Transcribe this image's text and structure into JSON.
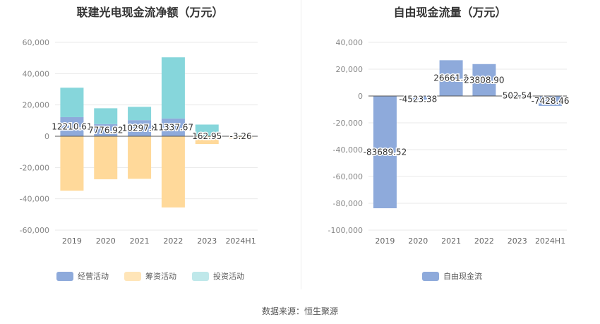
{
  "source": "数据来源：恒生聚源",
  "chart_data": [
    {
      "type": "bar",
      "stacked": true,
      "title": "联建光电现金流净额（万元）",
      "categories": [
        "2019",
        "2020",
        "2021",
        "2022",
        "2023",
        "2024H1"
      ],
      "ylim": [
        -60000,
        60000
      ],
      "yticks": [
        60000,
        40000,
        20000,
        0,
        -20000,
        -40000,
        -60000
      ],
      "ytick_labels": [
        "60,000",
        "40,000",
        "20,000",
        "0",
        "-20,000",
        "-40,000",
        "-60,000"
      ],
      "series": [
        {
          "name": "经营活动",
          "color": "#8eaadb",
          "values": [
            12210.61,
            7776.92,
            10297.8,
            11337.67,
            162.95,
            -3.26
          ]
        },
        {
          "name": "筹资活动",
          "color": "#ffd99a",
          "values": [
            -34800,
            -27500,
            -27200,
            -45500,
            -5000,
            -1500
          ]
        },
        {
          "name": "投资活动",
          "color": "#86d6db",
          "values": [
            18800,
            10100,
            8500,
            39100,
            7300,
            300
          ]
        }
      ],
      "data_labels": [
        "12210.61",
        "7776.92",
        "10297.8",
        "11337.67",
        "162.95",
        "-3.26"
      ],
      "legend": [
        "经营活动",
        "筹资活动",
        "投资活动"
      ]
    },
    {
      "type": "bar",
      "title": "自由现金流量（万元）",
      "categories": [
        "2019",
        "2020",
        "2021",
        "2022",
        "2023",
        "2024H1"
      ],
      "ylim": [
        -100000,
        40000
      ],
      "yticks": [
        40000,
        20000,
        0,
        -20000,
        -40000,
        -60000,
        -80000,
        -100000
      ],
      "ytick_labels": [
        "40,000",
        "20,000",
        "0",
        "-20,000",
        "-40,000",
        "-60,000",
        "-80,000",
        "-100,000"
      ],
      "series": [
        {
          "name": "自由现金流",
          "color": "#8eaadb",
          "values": [
            -83689.52,
            -4523.38,
            26661.2,
            23808.9,
            502.54,
            -7428.46
          ]
        }
      ],
      "data_labels": [
        "-83689.52",
        "-4523.38",
        "26661.2",
        "23808.90",
        "502.54",
        "-7428.46"
      ],
      "legend": [
        "自由现金流"
      ]
    }
  ]
}
